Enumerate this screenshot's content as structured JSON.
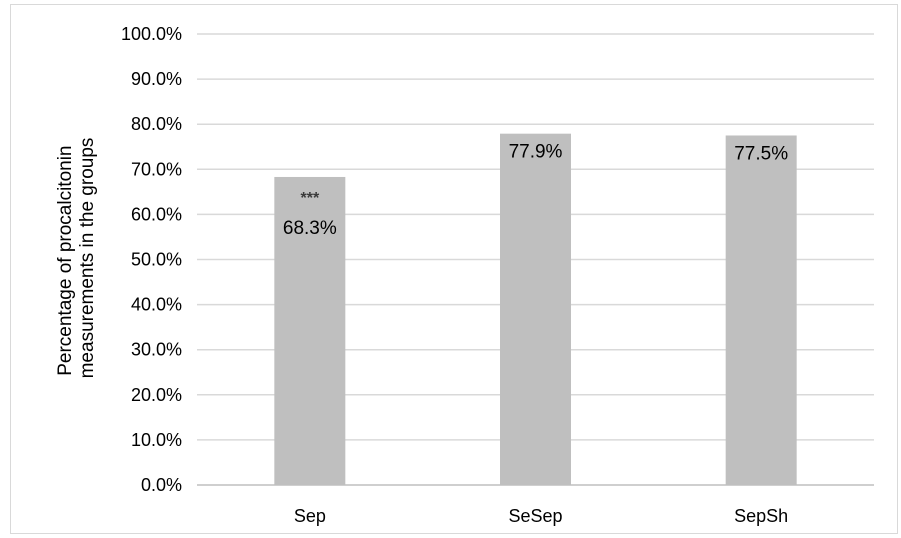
{
  "chart_data": {
    "type": "bar",
    "title": "",
    "xlabel": "",
    "ylabel_lines": [
      "Percentage of procalcitonin",
      "measurements in the groups"
    ],
    "categories": [
      "Sep",
      "SeSep",
      "SepSh"
    ],
    "values": [
      68.3,
      77.9,
      77.5
    ],
    "data_labels": [
      "68.3%",
      "77.9%",
      "77.5%"
    ],
    "annotations": [
      "***",
      "",
      ""
    ],
    "ylim": [
      0,
      100
    ],
    "yticks": [
      0,
      10,
      20,
      30,
      40,
      50,
      60,
      70,
      80,
      90,
      100
    ],
    "ytick_labels": [
      "0.0%",
      "10.0%",
      "20.0%",
      "30.0%",
      "40.0%",
      "50.0%",
      "60.0%",
      "70.0%",
      "80.0%",
      "90.0%",
      "100.0%"
    ],
    "grid": true,
    "legend": "none",
    "bar_color": "#bfbfbf",
    "grid_color": "#d9d9d9"
  }
}
